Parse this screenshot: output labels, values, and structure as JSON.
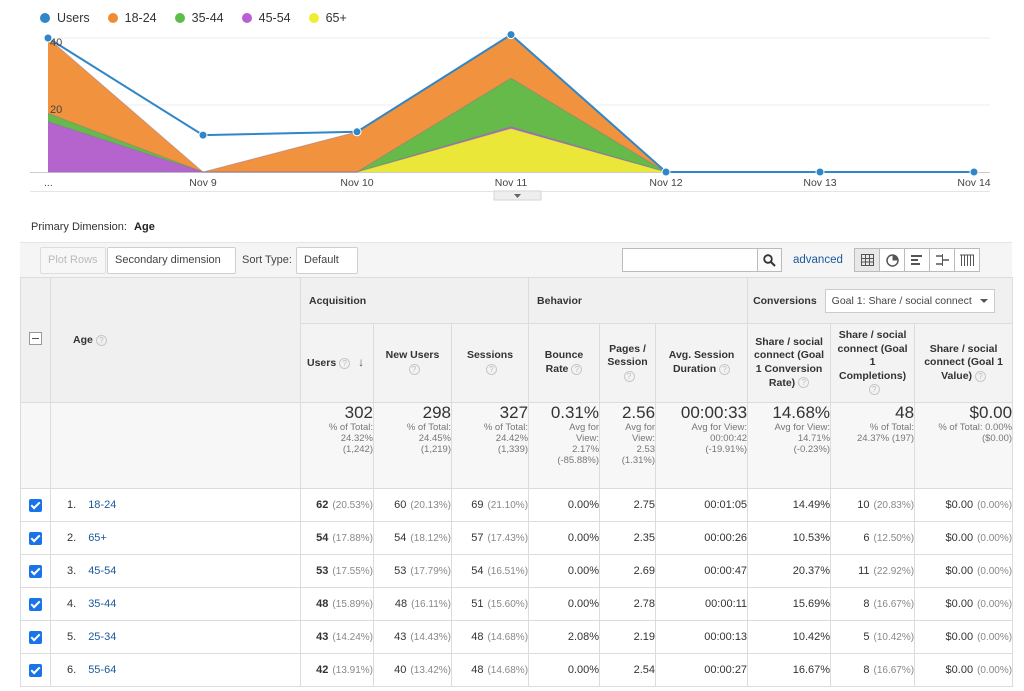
{
  "chart_data": {
    "type": "area",
    "x": [
      "...",
      "Nov 9",
      "Nov 10",
      "Nov 11",
      "Nov 12",
      "Nov 13",
      "Nov 14"
    ],
    "yticks": [
      20,
      40
    ],
    "ylim": [
      0,
      40
    ],
    "legend_position": "top-left",
    "series": [
      {
        "name": "Users",
        "color": "#2f86c8",
        "values": [
          40,
          11,
          12,
          41,
          0,
          0,
          0
        ]
      },
      {
        "name": "18-24",
        "color": "#f08c35",
        "values": [
          40,
          0,
          12,
          41,
          0,
          null,
          null
        ]
      },
      {
        "name": "35-44",
        "color": "#5ebd4a",
        "values": [
          17.5,
          0,
          0,
          28,
          0,
          null,
          null
        ]
      },
      {
        "name": "45-54",
        "color": "#b95fd6",
        "values": [
          15,
          0,
          0,
          13.5,
          0,
          null,
          null
        ]
      },
      {
        "name": "65+",
        "color": "#eeee30",
        "values": [
          0,
          0,
          0,
          13,
          0,
          null,
          null
        ]
      }
    ]
  },
  "primary_dimension": {
    "label": "Primary Dimension:",
    "value": "Age"
  },
  "toolbar": {
    "plot_rows": "Plot Rows",
    "secondary_dimension": "Secondary dimension",
    "sort_type_label": "Sort Type:",
    "sort_type_value": "Default",
    "advanced": "advanced"
  },
  "table": {
    "age_header": "Age",
    "groups": {
      "acquisition": "Acquisition",
      "behavior": "Behavior",
      "conversions": "Conversions"
    },
    "goal_select": "Goal 1: Share / social connect",
    "columns": {
      "users": "Users",
      "new_users": "New Users",
      "sessions": "Sessions",
      "bounce_rate": "Bounce Rate",
      "pages_session": "Pages / Session",
      "avg_session": "Avg. Session Duration",
      "conv_rate": "Share / social connect (Goal 1 Conversion Rate)",
      "completions": "Share / social connect (Goal 1 Completions)",
      "value": "Share / social connect (Goal 1 Value)"
    },
    "totals": {
      "users": {
        "main": "302",
        "sub": [
          "% of Total:",
          "24.32%",
          "(1,242)"
        ]
      },
      "new_users": {
        "main": "298",
        "sub": [
          "% of Total:",
          "24.45%",
          "(1,219)"
        ]
      },
      "sessions": {
        "main": "327",
        "sub": [
          "% of Total:",
          "24.42%",
          "(1,339)"
        ]
      },
      "bounce_rate": {
        "main": "0.31%",
        "sub": [
          "Avg for",
          "View:",
          "2.17%",
          "(-85.88%)"
        ]
      },
      "pages_session": {
        "main": "2.56",
        "sub": [
          "Avg for",
          "View:",
          "2.53",
          "(1.31%)"
        ]
      },
      "avg_session": {
        "main": "00:00:33",
        "sub": [
          "Avg for View:",
          "00:00:42",
          "(-19.91%)"
        ]
      },
      "conv_rate": {
        "main": "14.68%",
        "sub": [
          "Avg for View:",
          "14.71%",
          "(-0.23%)"
        ]
      },
      "completions": {
        "main": "48",
        "sub": [
          "% of Total:",
          "24.37% (197)"
        ]
      },
      "value": {
        "main": "$0.00",
        "sub": [
          "% of Total: 0.00%",
          "($0.00)"
        ]
      }
    },
    "rows": [
      {
        "index": "1.",
        "age": "18-24",
        "users": "62",
        "users_pct": "(20.53%)",
        "new_users": "60",
        "new_users_pct": "(20.13%)",
        "sessions": "69",
        "sessions_pct": "(21.10%)",
        "bounce": "0.00%",
        "pages": "2.75",
        "duration": "00:01:05",
        "conv_rate": "14.49%",
        "completions": "10",
        "completions_pct": "(20.83%)",
        "value": "$0.00",
        "value_pct": "(0.00%)"
      },
      {
        "index": "2.",
        "age": "65+",
        "users": "54",
        "users_pct": "(17.88%)",
        "new_users": "54",
        "new_users_pct": "(18.12%)",
        "sessions": "57",
        "sessions_pct": "(17.43%)",
        "bounce": "0.00%",
        "pages": "2.35",
        "duration": "00:00:26",
        "conv_rate": "10.53%",
        "completions": "6",
        "completions_pct": "(12.50%)",
        "value": "$0.00",
        "value_pct": "(0.00%)"
      },
      {
        "index": "3.",
        "age": "45-54",
        "users": "53",
        "users_pct": "(17.55%)",
        "new_users": "53",
        "new_users_pct": "(17.79%)",
        "sessions": "54",
        "sessions_pct": "(16.51%)",
        "bounce": "0.00%",
        "pages": "2.69",
        "duration": "00:00:47",
        "conv_rate": "20.37%",
        "completions": "11",
        "completions_pct": "(22.92%)",
        "value": "$0.00",
        "value_pct": "(0.00%)"
      },
      {
        "index": "4.",
        "age": "35-44",
        "users": "48",
        "users_pct": "(15.89%)",
        "new_users": "48",
        "new_users_pct": "(16.11%)",
        "sessions": "51",
        "sessions_pct": "(15.60%)",
        "bounce": "0.00%",
        "pages": "2.78",
        "duration": "00:00:11",
        "conv_rate": "15.69%",
        "completions": "8",
        "completions_pct": "(16.67%)",
        "value": "$0.00",
        "value_pct": "(0.00%)"
      },
      {
        "index": "5.",
        "age": "25-34",
        "users": "43",
        "users_pct": "(14.24%)",
        "new_users": "43",
        "new_users_pct": "(14.43%)",
        "sessions": "48",
        "sessions_pct": "(14.68%)",
        "bounce": "2.08%",
        "pages": "2.19",
        "duration": "00:00:13",
        "conv_rate": "10.42%",
        "completions": "5",
        "completions_pct": "(10.42%)",
        "value": "$0.00",
        "value_pct": "(0.00%)"
      },
      {
        "index": "6.",
        "age": "55-64",
        "users": "42",
        "users_pct": "(13.91%)",
        "new_users": "40",
        "new_users_pct": "(13.42%)",
        "sessions": "48",
        "sessions_pct": "(14.68%)",
        "bounce": "0.00%",
        "pages": "2.54",
        "duration": "00:00:27",
        "conv_rate": "16.67%",
        "completions": "8",
        "completions_pct": "(16.67%)",
        "value": "$0.00",
        "value_pct": "(0.00%)"
      }
    ]
  }
}
